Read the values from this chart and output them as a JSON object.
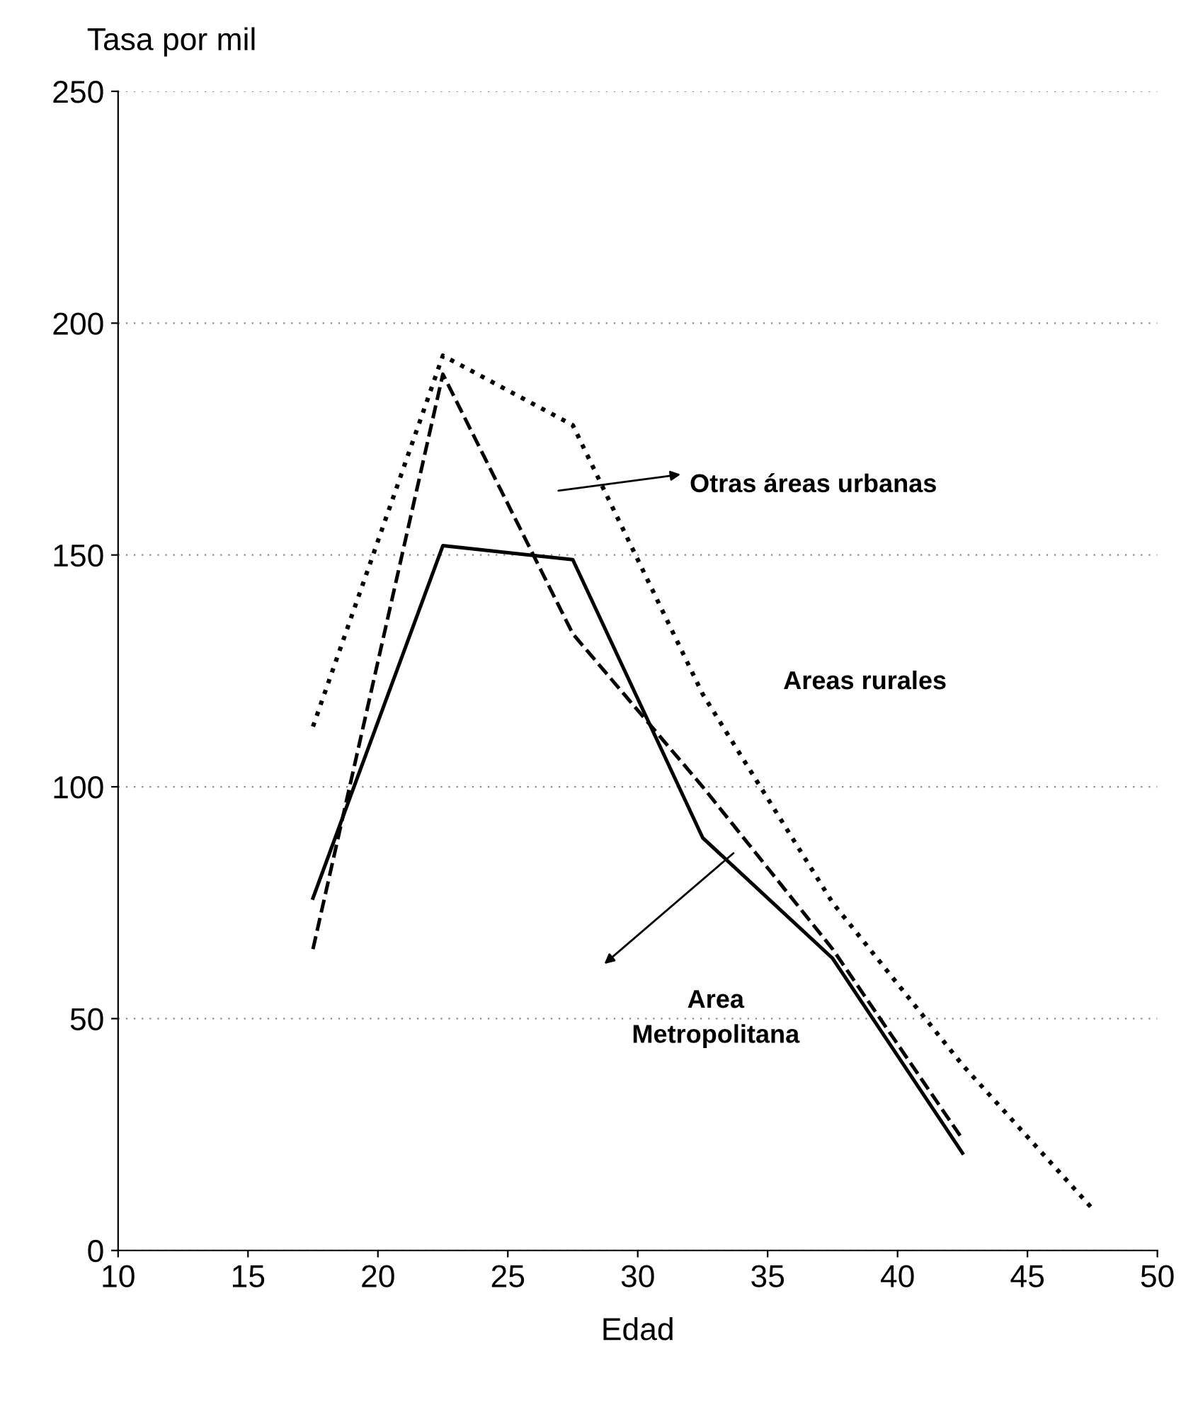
{
  "chart_data": {
    "type": "line",
    "ylabel": "Tasa por mil",
    "xlabel": "Edad",
    "xlim": [
      10,
      50
    ],
    "xticks": [
      10,
      15,
      20,
      25,
      30,
      35,
      40,
      45,
      50
    ],
    "ylim": [
      0,
      250
    ],
    "yticks": [
      0,
      50,
      100,
      150,
      200,
      250
    ],
    "grid": "y",
    "legend": "right",
    "marker": "none",
    "series": [
      {
        "name": "Otras áreas urbanas",
        "color": "#000000",
        "line_style": "dashed",
        "x": [
          17.5,
          22.5,
          27.5,
          32.5,
          37.5,
          42.5
        ],
        "values": [
          65,
          189,
          133,
          100,
          65,
          24
        ]
      },
      {
        "name": "Areas rurales",
        "color": "#000000",
        "line_style": "dotted",
        "x": [
          17.5,
          22.5,
          27.5,
          32.5,
          37.5,
          42.5,
          47.5
        ],
        "values": [
          113,
          193,
          178,
          120,
          75,
          40,
          9
        ]
      },
      {
        "name": "Area\nMetropolitana",
        "color": "#000000",
        "line_style": "solid",
        "x": [
          17.5,
          22.5,
          27.5,
          32.5,
          37.5,
          42.5
        ],
        "values": [
          76,
          152,
          149,
          89,
          63,
          21
        ]
      }
    ]
  }
}
